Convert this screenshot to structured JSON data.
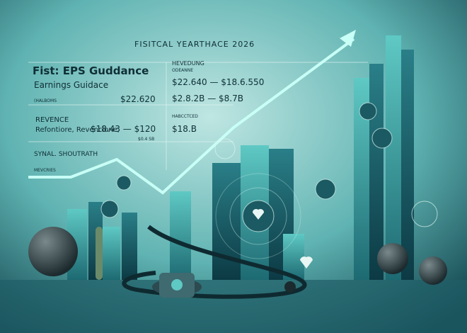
{
  "header": {
    "title": "FISITCAL YEARTHACE 2026"
  },
  "left_panel": {
    "heading": "Fist: EPS Guddance",
    "subheading": "Earnings Guidace",
    "small_label": "(HALBOMS",
    "eps_value": "$22.620",
    "revenue_label": "REVENCE",
    "revenue_desc": "Refontiore, Revencione,",
    "revenue_range": "$18.43 — $120",
    "revenue_note": "$0.4 SB",
    "footer_label": "SYNAL. SHOUTRATH",
    "footer_sub": "MEVCRIES"
  },
  "right_panel": {
    "heading": "HEVEDUNG",
    "subheading": "ODEANNE",
    "range_1": "$22.640 — $18.6.550",
    "range_2": "$2.8.2B — $8.7B",
    "label": "HABCCTCED",
    "value": "$18.B"
  }
}
